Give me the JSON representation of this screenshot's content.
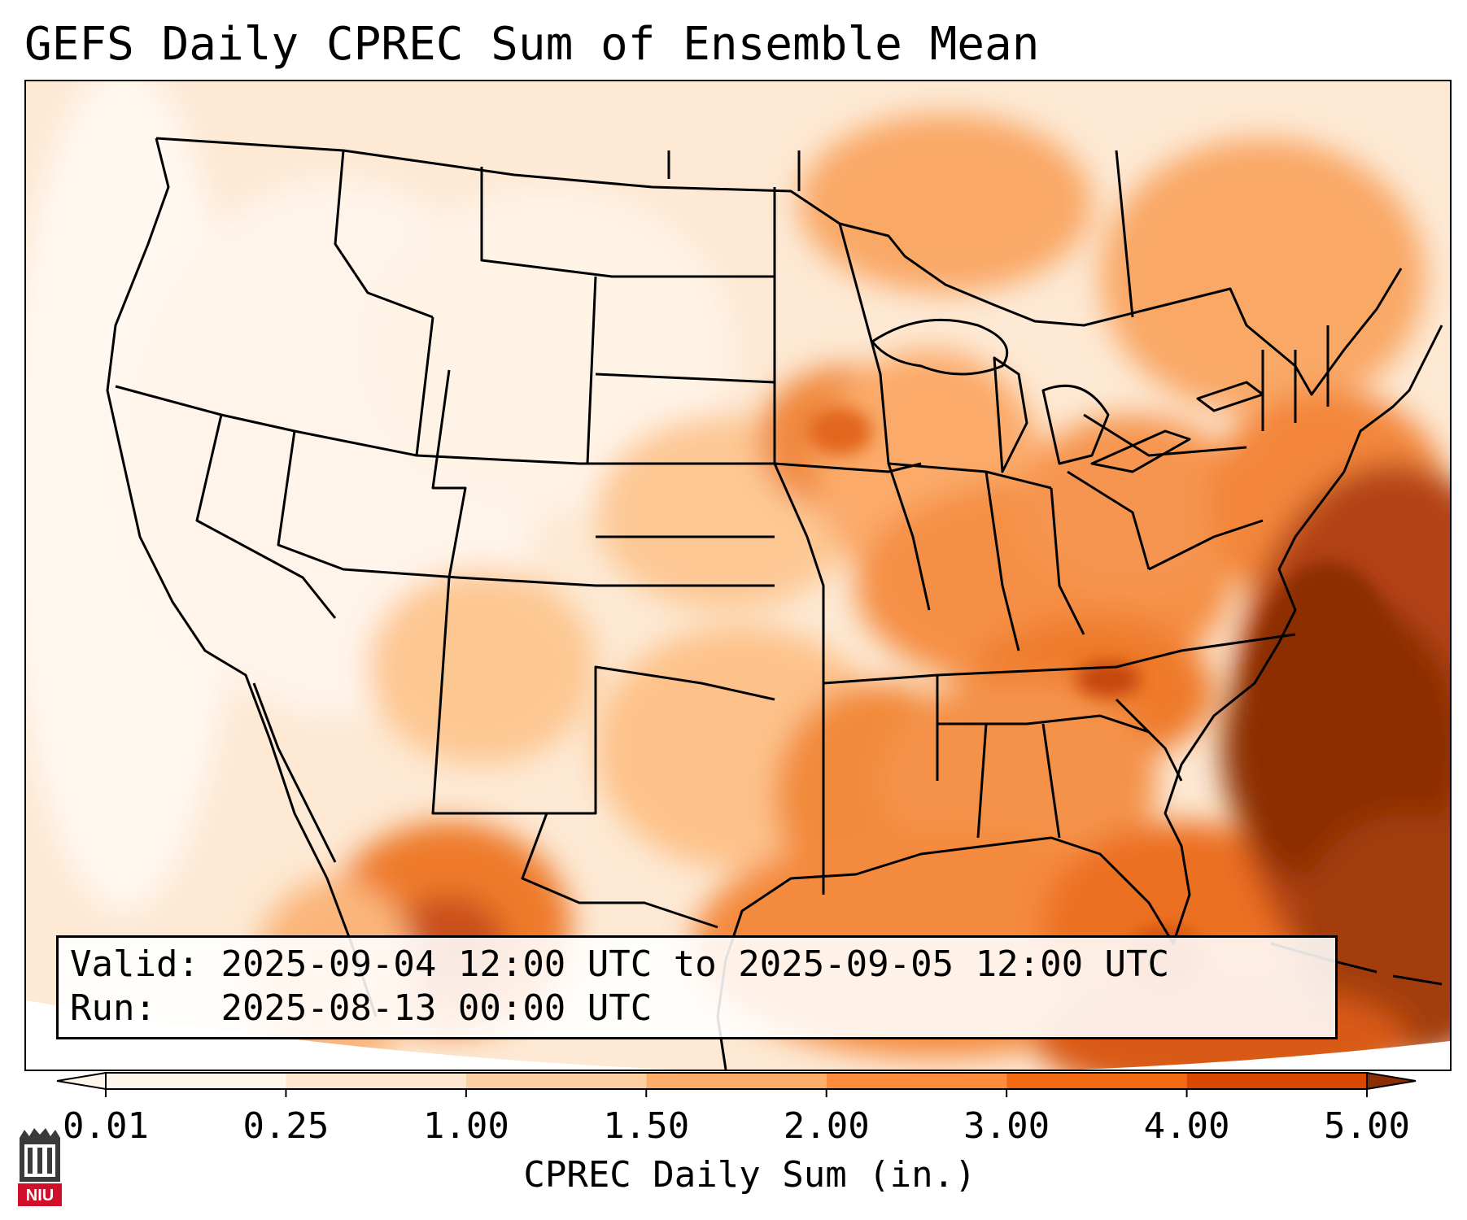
{
  "title": "GEFS Daily CPREC Sum of Ensemble Mean",
  "info": {
    "valid_label": "Valid:",
    "valid_value": "2025-09-04 12:00 UTC to 2025-09-05 12:00 UTC",
    "run_label": "Run:",
    "run_value": "2025-08-13 00:00 UTC"
  },
  "colorbar": {
    "ticks": [
      "0.01",
      "0.25",
      "1.00",
      "1.50",
      "2.00",
      "3.00",
      "4.00",
      "5.00"
    ],
    "label": "CPREC Daily Sum (in.)",
    "colors": [
      "#fff5eb",
      "#fee6ce",
      "#fdd0a2",
      "#fdae6b",
      "#fd8d3c",
      "#f16913",
      "#d94801",
      "#8c2d04"
    ]
  },
  "logo": {
    "text": "NIU",
    "icon": "university-tower-icon"
  }
}
